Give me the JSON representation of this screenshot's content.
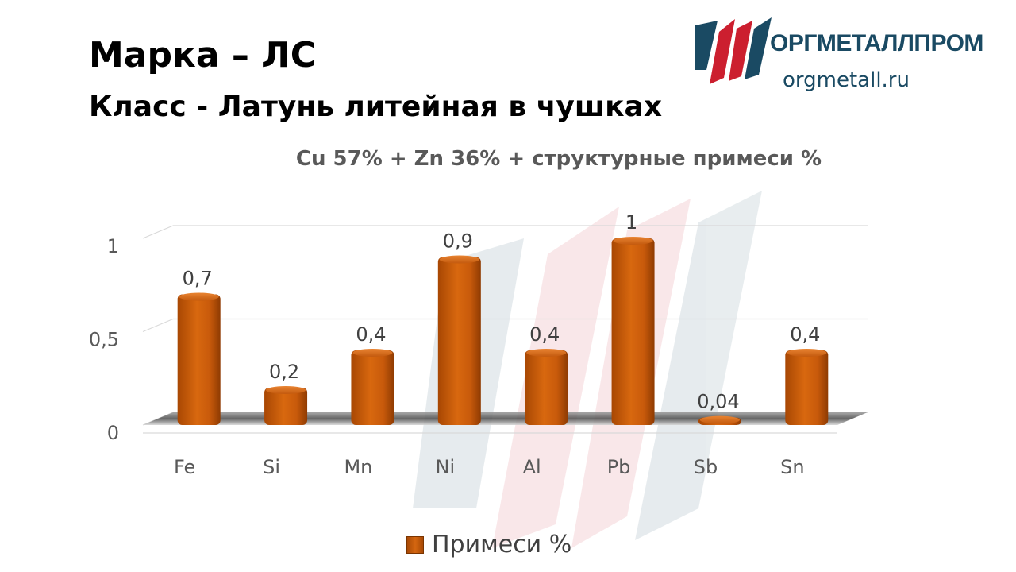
{
  "header": {
    "title": "Марка – ЛС",
    "subtitle": "Класс -  Латунь литейная в чушках"
  },
  "logo": {
    "name": "ОРГМЕТАЛЛПРОМ",
    "url": "orgmetall.ru",
    "colors": {
      "red": "#cc1f2f",
      "teal": "#1a4a63"
    }
  },
  "chart_data": {
    "type": "bar",
    "title": "Cu 57% + Zn 36% + структурные примеси %",
    "categories": [
      "Fe",
      "Si",
      "Mn",
      "Ni",
      "Al",
      "Pb",
      "Sb",
      "Sn"
    ],
    "series": [
      {
        "name": "Примеси %",
        "values": [
          0.7,
          0.2,
          0.4,
          0.9,
          0.4,
          1,
          0.04,
          0.4
        ],
        "labels": [
          "0,7",
          "0,2",
          "0,4",
          "0,9",
          "0,4",
          "1",
          "0,04",
          "0,4"
        ],
        "color": "#c55a11"
      }
    ],
    "y_ticks": [
      {
        "value": 0,
        "label": "0"
      },
      {
        "value": 0.5,
        "label": "0,5"
      },
      {
        "value": 1,
        "label": "1"
      }
    ],
    "ylim": [
      0,
      1
    ],
    "grid": true,
    "style": "3d-column",
    "legend": "bottom"
  }
}
